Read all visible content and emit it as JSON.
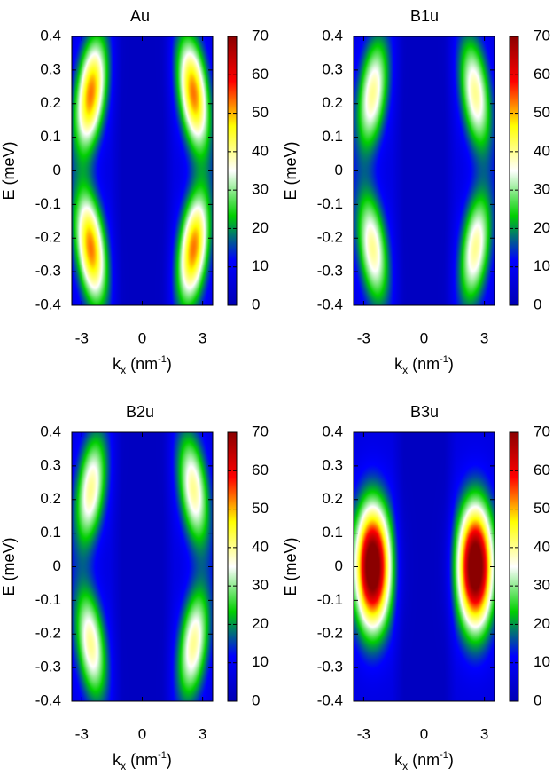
{
  "colors": {
    "background": "#ffffff",
    "colormap": [
      "#0000b4",
      "#0000ff",
      "#00d000",
      "#ffffff",
      "#ffff00",
      "#ff0000",
      "#8b0000"
    ]
  },
  "chart_data": [
    {
      "type": "heatmap",
      "title": "Au",
      "xlabel": {
        "base": "k",
        "sub": "x",
        "unit_open": " (nm",
        "sup": "-1",
        "unit_close": ")"
      },
      "ylabel": "E (meV)",
      "xlim": [
        -3.5,
        3.5
      ],
      "ylim": [
        -0.4,
        0.4
      ],
      "xticks": [
        -3,
        0,
        3
      ],
      "yticks": [
        0.4,
        0.3,
        0.2,
        0.1,
        0,
        -0.1,
        -0.2,
        -0.3,
        -0.4
      ],
      "ytick_labels": [
        "0.4",
        "0.3",
        "0.2",
        "0.1",
        "0",
        "-0.1",
        "-0.2",
        "-0.3",
        "-0.4"
      ],
      "zlim": [
        0,
        70
      ],
      "colorbar_ticks": [
        70,
        60,
        50,
        40,
        30,
        20,
        10,
        0
      ],
      "hotspots": [
        {
          "kx": -2.55,
          "E": 0.23,
          "peak": 46
        },
        {
          "kx": 2.55,
          "E": 0.23,
          "peak": 46
        },
        {
          "kx": -2.55,
          "E": -0.23,
          "peak": 46
        },
        {
          "kx": 2.55,
          "E": -0.23,
          "peak": 46
        }
      ]
    },
    {
      "type": "heatmap",
      "title": "B1u",
      "xlabel": {
        "base": "k",
        "sub": "x",
        "unit_open": " (nm",
        "sup": "-1",
        "unit_close": ")"
      },
      "ylabel": "E (meV)",
      "xlim": [
        -3.5,
        3.5
      ],
      "ylim": [
        -0.4,
        0.4
      ],
      "xticks": [
        -3,
        0,
        3
      ],
      "yticks": [
        0.4,
        0.3,
        0.2,
        0.1,
        0,
        -0.1,
        -0.2,
        -0.3,
        -0.4
      ],
      "ytick_labels": [
        "0.4",
        "0.3",
        "0.2",
        "0.1",
        "0",
        "-0.1",
        "-0.2",
        "-0.3",
        "-0.4"
      ],
      "zlim": [
        0,
        70
      ],
      "colorbar_ticks": [
        70,
        60,
        50,
        40,
        30,
        20,
        10,
        0
      ],
      "hotspots": [
        {
          "kx": -2.55,
          "E": 0.23,
          "peak": 33
        },
        {
          "kx": 2.55,
          "E": 0.23,
          "peak": 33
        },
        {
          "kx": -2.55,
          "E": -0.23,
          "peak": 33
        },
        {
          "kx": 2.55,
          "E": -0.23,
          "peak": 33
        }
      ]
    },
    {
      "type": "heatmap",
      "title": "B2u",
      "xlabel": {
        "base": "k",
        "sub": "x",
        "unit_open": " (nm",
        "sup": "-1",
        "unit_close": ")"
      },
      "ylabel": "E (meV)",
      "xlim": [
        -3.5,
        3.5
      ],
      "ylim": [
        -0.4,
        0.4
      ],
      "xticks": [
        -3,
        0,
        3
      ],
      "yticks": [
        0.4,
        0.3,
        0.2,
        0.1,
        0,
        -0.1,
        -0.2,
        -0.3,
        -0.4
      ],
      "ytick_labels": [
        "0.4",
        "0.3",
        "0.2",
        "0.1",
        "0",
        "-0.1",
        "-0.2",
        "-0.3",
        "-0.4"
      ],
      "zlim": [
        0,
        70
      ],
      "colorbar_ticks": [
        70,
        60,
        50,
        40,
        30,
        20,
        10,
        0
      ],
      "hotspots": [
        {
          "kx": -2.55,
          "E": 0.23,
          "peak": 33
        },
        {
          "kx": 2.55,
          "E": 0.23,
          "peak": 33
        },
        {
          "kx": -2.55,
          "E": -0.23,
          "peak": 33
        },
        {
          "kx": 2.55,
          "E": -0.23,
          "peak": 33
        }
      ]
    },
    {
      "type": "heatmap",
      "title": "B3u",
      "xlabel": {
        "base": "k",
        "sub": "x",
        "unit_open": " (nm",
        "sup": "-1",
        "unit_close": ")"
      },
      "ylabel": "E (meV)",
      "xlim": [
        -3.5,
        3.5
      ],
      "ylim": [
        -0.4,
        0.4
      ],
      "xticks": [
        -3,
        0,
        3
      ],
      "yticks": [
        0.4,
        0.3,
        0.2,
        0.1,
        0,
        -0.1,
        -0.2,
        -0.3,
        -0.4
      ],
      "ytick_labels": [
        "0.4",
        "0.3",
        "0.2",
        "0.1",
        "0",
        "-0.1",
        "-0.2",
        "-0.3",
        "-0.4"
      ],
      "zlim": [
        0,
        70
      ],
      "colorbar_ticks": [
        70,
        60,
        50,
        40,
        30,
        20,
        10,
        0
      ],
      "hotspots": [
        {
          "kx": -2.55,
          "E": 0,
          "peak": 72
        },
        {
          "kx": 2.55,
          "E": 0,
          "peak": 72
        }
      ]
    }
  ]
}
